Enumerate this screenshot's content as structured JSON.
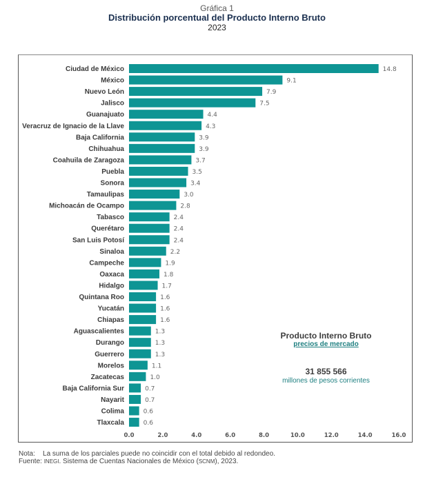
{
  "header": {
    "label": "Gráfica 1",
    "title": "Distribución porcentual del Producto Interno Bruto",
    "year": "2023"
  },
  "info_box": {
    "title": "Producto Interno Bruto",
    "subtitle": "precios de mercado",
    "value": "31 855 566",
    "unit": "millones de pesos corrientes"
  },
  "notes": {
    "nota_label": "Nota:",
    "nota_text": "La suma de los parciales puede no coincidir con el total debido al redondeo.",
    "fuente_label": "Fuente:",
    "fuente_org": "INEGI",
    "fuente_text_1": ". Sistema de Cuentas Nacionales de México (",
    "fuente_abbr": "SCNM",
    "fuente_text_2": "), 2023."
  },
  "colors": {
    "bar": "#0e9594"
  },
  "chart_data": {
    "type": "bar",
    "orientation": "horizontal",
    "title": "Distribución porcentual del Producto Interno Bruto",
    "subtitle": "2023",
    "xlabel": "",
    "ylabel": "",
    "xlim": [
      0,
      16
    ],
    "x_ticks": [
      "0.0",
      "2.0",
      "4.0",
      "6.0",
      "8.0",
      "10.0",
      "12.0",
      "14.0",
      "16.0"
    ],
    "grid": false,
    "categories": [
      "Ciudad de México",
      "México",
      "Nuevo León",
      "Jalisco",
      "Guanajuato",
      "Veracruz de Ignacio de la Llave",
      "Baja California",
      "Chihuahua",
      "Coahuila de Zaragoza",
      "Puebla",
      "Sonora",
      "Tamaulipas",
      "Michoacán de Ocampo",
      "Tabasco",
      "Querétaro",
      "San Luis Potosí",
      "Sinaloa",
      "Campeche",
      "Oaxaca",
      "Hidalgo",
      "Quintana Roo",
      "Yucatán",
      "Chiapas",
      "Aguascalientes",
      "Durango",
      "Guerrero",
      "Morelos",
      "Zacatecas",
      "Baja California Sur",
      "Nayarit",
      "Colima",
      "Tlaxcala"
    ],
    "values": [
      14.8,
      9.1,
      7.9,
      7.5,
      4.4,
      4.3,
      3.9,
      3.9,
      3.7,
      3.5,
      3.4,
      3.0,
      2.8,
      2.4,
      2.4,
      2.4,
      2.2,
      1.9,
      1.8,
      1.7,
      1.6,
      1.6,
      1.6,
      1.3,
      1.3,
      1.3,
      1.1,
      1.0,
      0.7,
      0.7,
      0.6,
      0.6
    ],
    "value_labels": [
      "14.8",
      "9.1",
      "7.9",
      "7.5",
      "4.4",
      "4.3",
      "3.9",
      "3.9",
      "3.7",
      "3.5",
      "3.4",
      "3.0",
      "2.8",
      "2.4",
      "2.4",
      "2.4",
      "2.2",
      "1.9",
      "1.8",
      "1.7",
      "1.6",
      "1.6",
      "1.6",
      "1.3",
      "1.3",
      "1.3",
      "1.1",
      "1.0",
      "0.7",
      "0.7",
      "0.6",
      "0.6"
    ],
    "legend": "none"
  }
}
